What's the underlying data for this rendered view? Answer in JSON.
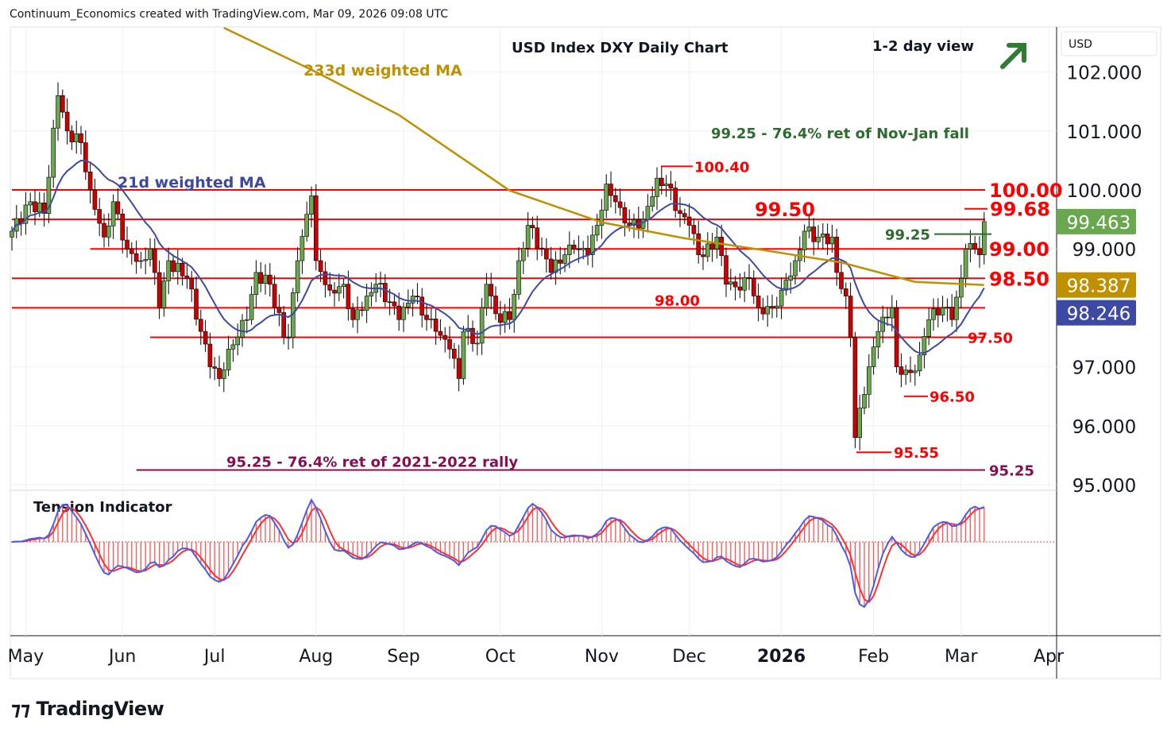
{
  "header": {
    "credit": "Continuum_Economics created with TradingView.com, Mar 09, 2026 09:08 UTC"
  },
  "logo": "TradingView",
  "chart_data": {
    "type": "candlestick",
    "title": "USD Index DXY Daily Chart",
    "subtitle": "1-2 day view",
    "currency": "USD",
    "x_unit": "trading day index",
    "ylim": [
      95.0,
      102.6
    ],
    "y_ticks": [
      "102.000",
      "101.000",
      "100.000",
      "99.000",
      "97.000",
      "96.000",
      "95.000"
    ],
    "y_tick_values": [
      102,
      101,
      100,
      99,
      97,
      96,
      95
    ],
    "month_ticks": [
      {
        "label": "May",
        "day": 3
      },
      {
        "label": "Jun",
        "day": 24
      },
      {
        "label": "Jul",
        "day": 44
      },
      {
        "label": "Aug",
        "day": 66
      },
      {
        "label": "Sep",
        "day": 85
      },
      {
        "label": "Oct",
        "day": 106
      },
      {
        "label": "Nov",
        "day": 128
      },
      {
        "label": "Dec",
        "day": 147
      },
      {
        "label": "2026",
        "day": 167,
        "bold": true
      },
      {
        "label": "Feb",
        "day": 187
      },
      {
        "label": "Mar",
        "day": 206
      },
      {
        "label": "Apr",
        "day": 225
      }
    ],
    "close_path": [
      [
        0,
        99.3
      ],
      [
        4,
        99.8
      ],
      [
        7,
        99.6
      ],
      [
        10,
        101.6
      ],
      [
        12,
        101.0
      ],
      [
        15,
        100.8
      ],
      [
        17,
        100.0
      ],
      [
        20,
        99.2
      ],
      [
        22,
        99.8
      ],
      [
        25,
        99.0
      ],
      [
        28,
        98.8
      ],
      [
        30,
        99.0
      ],
      [
        32,
        98.0
      ],
      [
        34,
        98.8
      ],
      [
        38,
        98.5
      ],
      [
        41,
        97.6
      ],
      [
        43,
        97.0
      ],
      [
        45,
        96.8
      ],
      [
        47,
        97.3
      ],
      [
        51,
        97.8
      ],
      [
        53,
        98.6
      ],
      [
        56,
        98.4
      ],
      [
        59,
        97.5
      ],
      [
        60,
        97.5
      ],
      [
        62,
        98.8
      ],
      [
        65,
        99.9
      ],
      [
        66,
        98.8
      ],
      [
        69,
        98.3
      ],
      [
        72,
        98.4
      ],
      [
        74,
        97.8
      ],
      [
        77,
        98.2
      ],
      [
        79,
        98.4
      ],
      [
        82,
        98.1
      ],
      [
        84,
        97.8
      ],
      [
        87,
        98.2
      ],
      [
        90,
        97.8
      ],
      [
        92,
        97.6
      ],
      [
        95,
        97.3
      ],
      [
        97,
        96.8
      ],
      [
        98,
        97.6
      ],
      [
        101,
        97.4
      ],
      [
        103,
        98.4
      ],
      [
        105,
        97.9
      ],
      [
        108,
        97.8
      ],
      [
        110,
        98.8
      ],
      [
        112,
        99.4
      ],
      [
        115,
        99.0
      ],
      [
        117,
        98.6
      ],
      [
        120,
        98.9
      ],
      [
        122,
        99.0
      ],
      [
        125,
        98.9
      ],
      [
        127,
        99.4
      ],
      [
        129,
        100.1
      ],
      [
        132,
        99.7
      ],
      [
        134,
        99.4
      ],
      [
        137,
        99.5
      ],
      [
        140,
        100.2
      ],
      [
        142,
        100.1
      ],
      [
        145,
        99.6
      ],
      [
        147,
        99.4
      ],
      [
        149,
        98.9
      ],
      [
        152,
        99.0
      ],
      [
        153,
        99.2
      ],
      [
        155,
        98.4
      ],
      [
        158,
        98.3
      ],
      [
        160,
        98.5
      ],
      [
        162,
        98.0
      ],
      [
        165,
        98.0
      ],
      [
        167,
        98.3
      ],
      [
        170,
        98.8
      ],
      [
        172,
        99.3
      ],
      [
        175,
        99.2
      ],
      [
        178,
        99.2
      ],
      [
        179,
        98.6
      ],
      [
        181,
        98.2
      ],
      [
        182,
        97.5
      ],
      [
        183,
        95.8
      ],
      [
        184,
        96.3
      ],
      [
        186,
        97.0
      ],
      [
        188,
        97.6
      ],
      [
        191,
        98.0
      ],
      [
        192,
        97.0
      ],
      [
        195,
        96.9
      ],
      [
        197,
        97.2
      ],
      [
        199,
        97.8
      ],
      [
        202,
        98.0
      ],
      [
        204,
        97.8
      ],
      [
        206,
        98.5
      ],
      [
        207,
        99.0
      ],
      [
        209,
        99.0
      ],
      [
        210,
        98.9
      ],
      [
        211,
        99.463
      ]
    ],
    "ma233_path": [
      [
        46,
        102.75
      ],
      [
        66,
        102.0
      ],
      [
        84,
        101.27
      ],
      [
        108,
        99.99
      ],
      [
        128,
        99.45
      ],
      [
        146,
        99.18
      ],
      [
        163,
        98.98
      ],
      [
        180,
        98.77
      ],
      [
        196,
        98.44
      ],
      [
        211,
        98.387
      ]
    ],
    "series_labels": {
      "ma233": "233d weighted MA",
      "ma21": "21d weighted MA"
    },
    "last_values": [
      {
        "label": "99.463",
        "value": 99.463,
        "color": "#6aa84f"
      },
      {
        "label": "98.387",
        "value": 98.387,
        "color": "#bf9000"
      },
      {
        "label": "98.246",
        "value": 98.246,
        "color": "#3d4aa3"
      }
    ],
    "levels": [
      {
        "value": 100.0,
        "label": "100.00",
        "start": 0,
        "big": true
      },
      {
        "value": 99.5,
        "label": "",
        "start": 0
      },
      {
        "value": 99.0,
        "label": "99.00",
        "start": 17,
        "big": true
      },
      {
        "value": 98.5,
        "label": "98.50",
        "start": 0,
        "big": true
      },
      {
        "value": 98.0,
        "label": "",
        "start": 0
      },
      {
        "value": 97.5,
        "label": "97.50",
        "start": 30
      }
    ],
    "annotations": {
      "fib_nov_jan": "99.25 - 76.4% ret of Nov-Jan fall",
      "fib_2021": "95.25 - 76.4% ret of 2021-2022 rally",
      "l9525": "95.25",
      "l9925": "99.25",
      "l9968": "99.68",
      "l10040": "100.40",
      "l9950": "99.50",
      "l9800": "98.00",
      "l9650": "96.50",
      "l9555": "95.55"
    },
    "indicator": {
      "title": "Tension Indicator"
    }
  }
}
